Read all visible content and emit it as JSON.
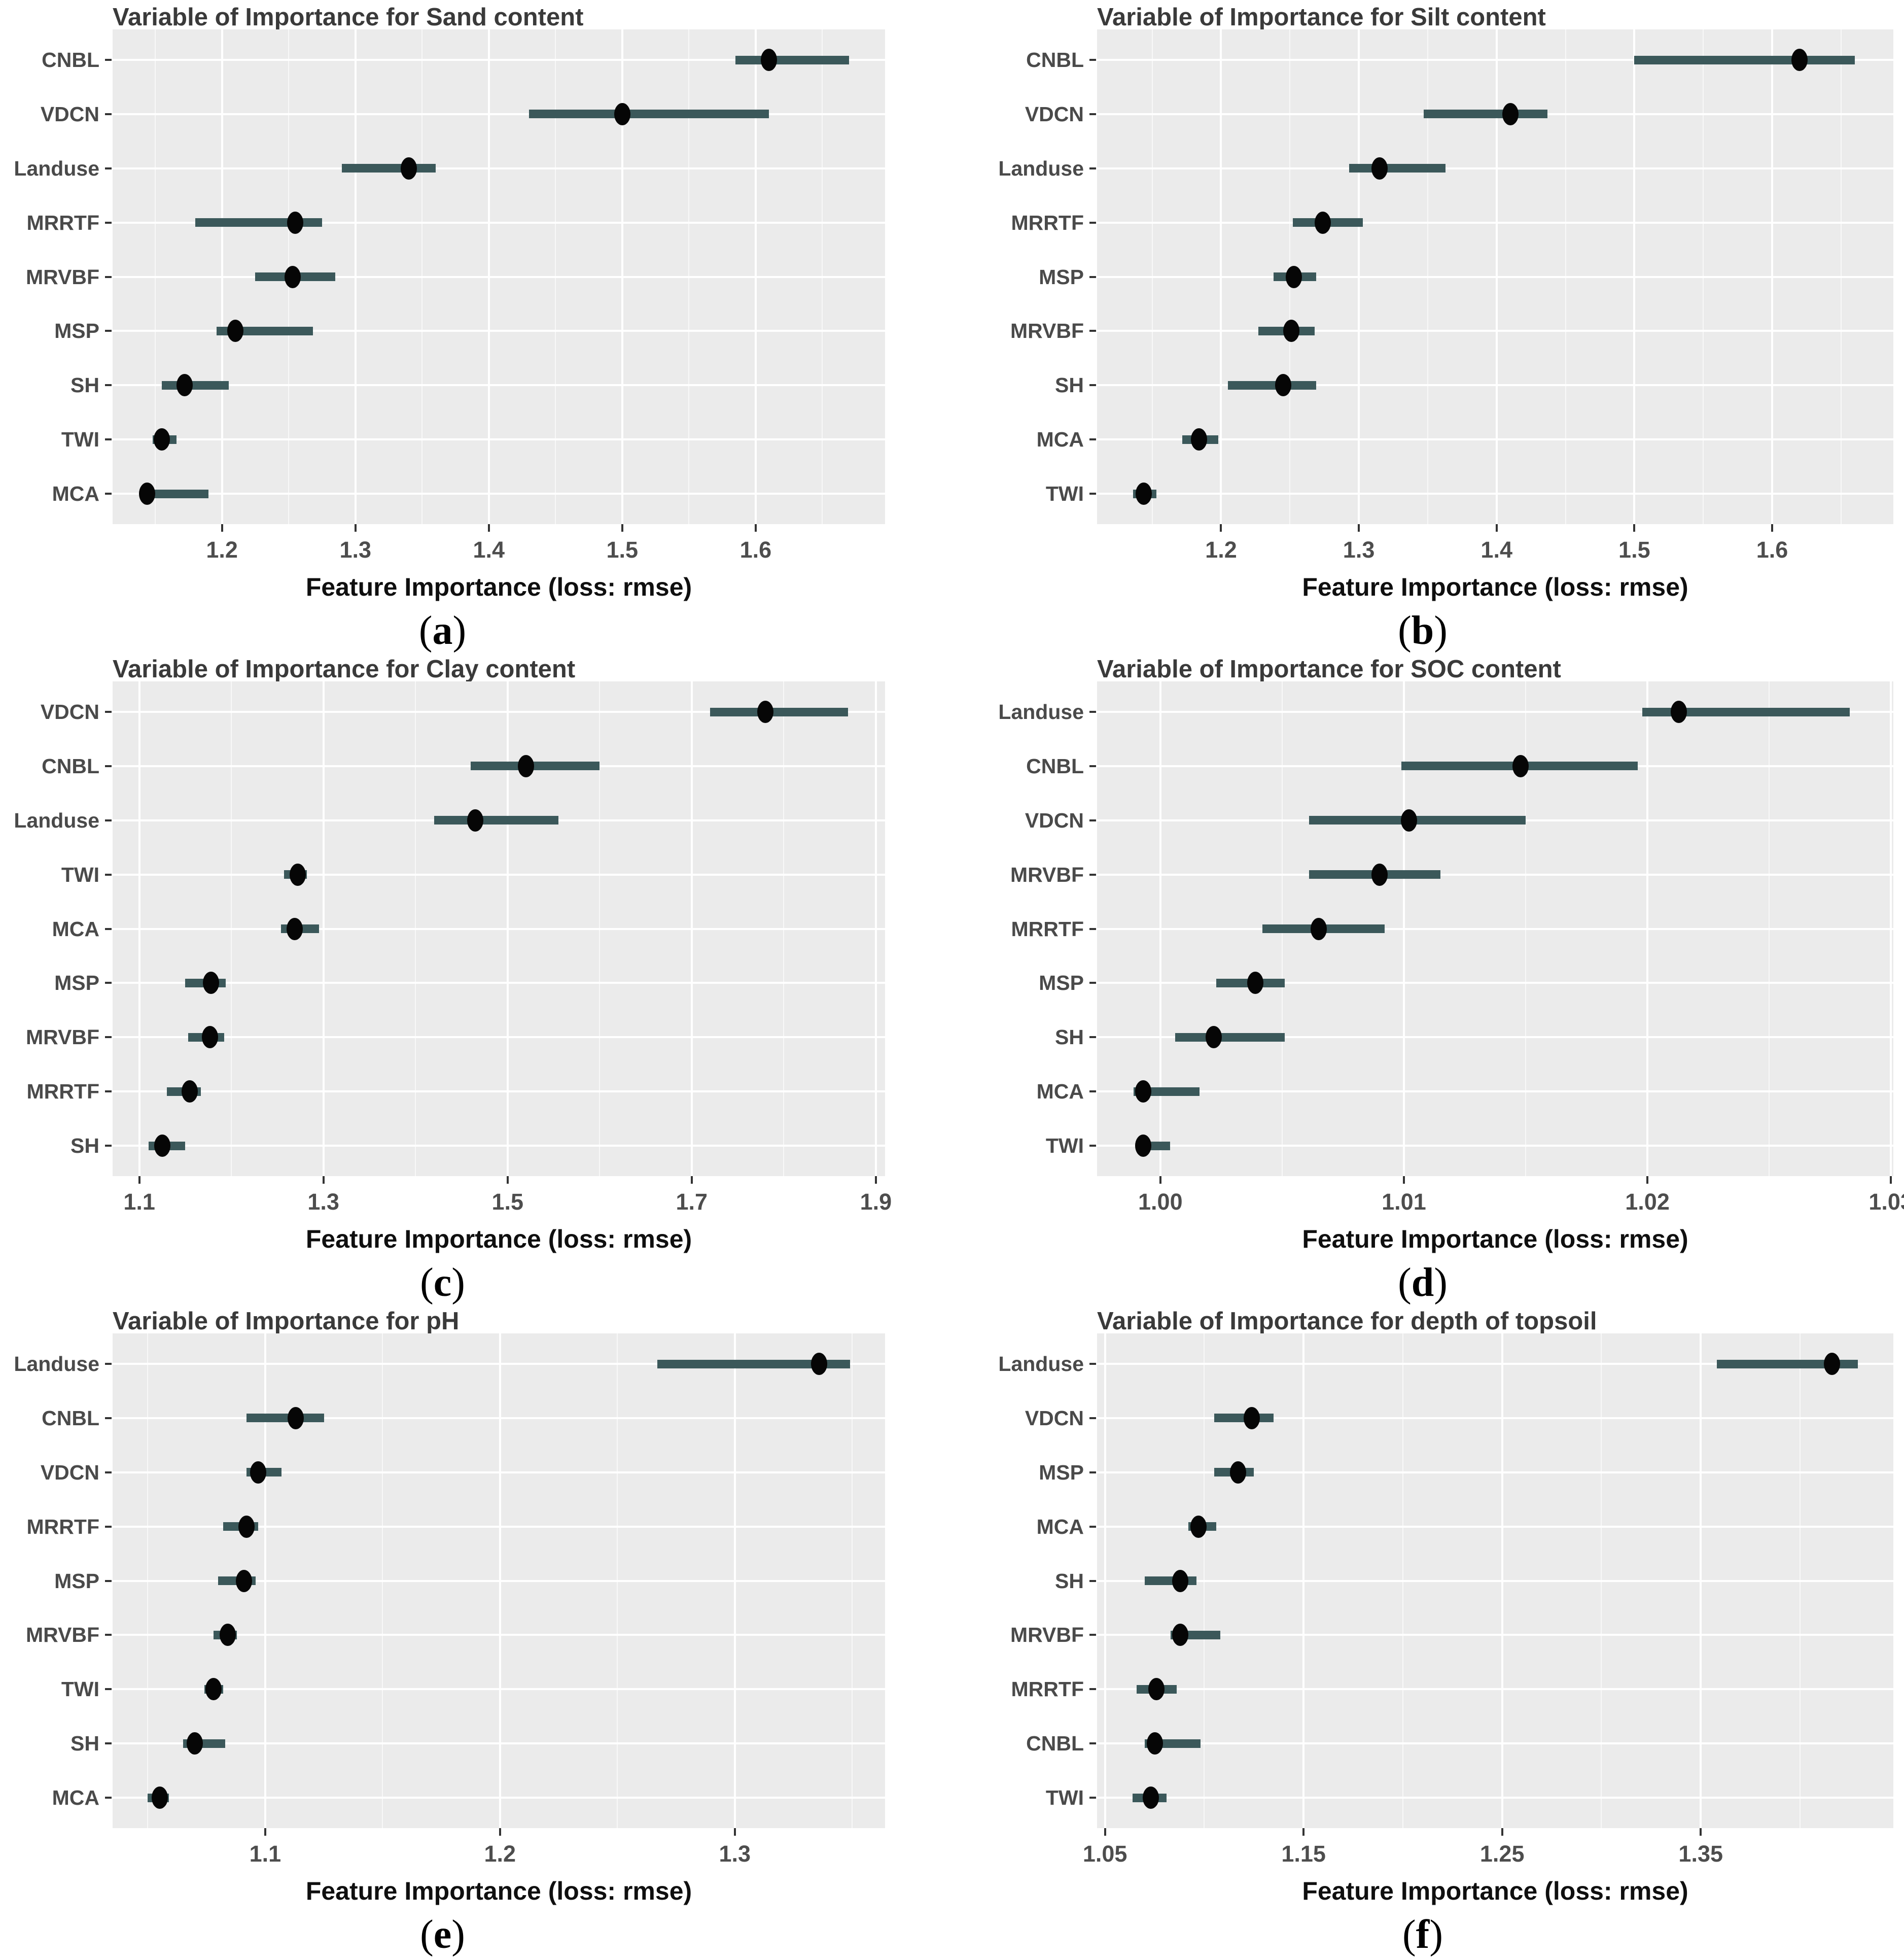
{
  "theme": {
    "plot_background": "#ebebeb",
    "gridline_color": "#ffffff",
    "bar_color": "#3b585a",
    "point_color": "#060606",
    "axis_text_color": "#4d4d4d",
    "title_color": "#3a3a3a"
  },
  "chart_data": [
    {
      "type": "scatter",
      "panel": "a",
      "title": "Variable of Importance for Sand content",
      "xlabel": "Feature Importance (loss: rmse)",
      "caption": {
        "open": "(",
        "letter": "a",
        "close": ")"
      },
      "legend": "none",
      "grid": "major+minor",
      "categories": [
        "CNBL",
        "VDCN",
        "Landuse",
        "MRRTF",
        "MRVBF",
        "MSP",
        "SH",
        "TWI",
        "MCA"
      ],
      "means": [
        1.61,
        1.5,
        1.34,
        1.255,
        1.253,
        1.21,
        1.172,
        1.155,
        1.144
      ],
      "lower": [
        1.585,
        1.43,
        1.29,
        1.18,
        1.225,
        1.196,
        1.155,
        1.148,
        1.139
      ],
      "upper": [
        1.67,
        1.61,
        1.36,
        1.275,
        1.285,
        1.268,
        1.205,
        1.166,
        1.19
      ],
      "xlim": [
        1.118,
        1.697
      ],
      "xticks": [
        1.2,
        1.3,
        1.4,
        1.5,
        1.6
      ],
      "xtick_labels": [
        "1.2",
        "1.3",
        "1.4",
        "1.5",
        "1.6"
      ],
      "xminor": [
        1.15,
        1.25,
        1.35,
        1.45,
        1.55,
        1.65
      ]
    },
    {
      "type": "scatter",
      "panel": "b",
      "title": "Variable of Importance for Silt content",
      "xlabel": "Feature Importance (loss: rmse)",
      "caption": {
        "open": "(",
        "letter": "b",
        "close": ")"
      },
      "legend": "none",
      "grid": "major+minor",
      "categories": [
        "CNBL",
        "VDCN",
        "Landuse",
        "MRRTF",
        "MSP",
        "MRVBF",
        "SH",
        "MCA",
        "TWI"
      ],
      "means": [
        1.62,
        1.41,
        1.315,
        1.274,
        1.253,
        1.251,
        1.245,
        1.184,
        1.144
      ],
      "lower": [
        1.5,
        1.347,
        1.293,
        1.252,
        1.238,
        1.227,
        1.205,
        1.172,
        1.136
      ],
      "upper": [
        1.66,
        1.437,
        1.363,
        1.303,
        1.269,
        1.268,
        1.269,
        1.198,
        1.153
      ],
      "xlim": [
        1.11,
        1.688
      ],
      "xticks": [
        1.2,
        1.3,
        1.4,
        1.5,
        1.6
      ],
      "xtick_labels": [
        "1.2",
        "1.3",
        "1.4",
        "1.5",
        "1.6"
      ],
      "xminor": [
        1.15,
        1.25,
        1.35,
        1.45,
        1.55,
        1.65
      ]
    },
    {
      "type": "scatter",
      "panel": "c",
      "title": "Variable of Importance for Clay content",
      "xlabel": "Feature Importance (loss: rmse)",
      "caption": {
        "open": "(",
        "letter": "c",
        "close": ")"
      },
      "legend": "none",
      "grid": "major+minor",
      "categories": [
        "VDCN",
        "CNBL",
        "Landuse",
        "TWI",
        "MCA",
        "MSP",
        "MRVBF",
        "MRRTF",
        "SH"
      ],
      "means": [
        1.78,
        1.52,
        1.465,
        1.272,
        1.269,
        1.178,
        1.177,
        1.155,
        1.125
      ],
      "lower": [
        1.72,
        1.46,
        1.42,
        1.257,
        1.254,
        1.15,
        1.153,
        1.13,
        1.11
      ],
      "upper": [
        1.87,
        1.6,
        1.555,
        1.282,
        1.295,
        1.194,
        1.192,
        1.167,
        1.15
      ],
      "xlim": [
        1.071,
        1.91
      ],
      "xticks": [
        1.1,
        1.3,
        1.5,
        1.7,
        1.9
      ],
      "xtick_labels": [
        "1.1",
        "1.3",
        "1.5",
        "1.7",
        "1.9"
      ],
      "xminor": [
        1.2,
        1.4,
        1.6,
        1.8
      ]
    },
    {
      "type": "scatter",
      "panel": "d",
      "title": "Variable of Importance for SOC content",
      "xlabel": "Feature Importance (loss: rmse)",
      "caption": {
        "open": "(",
        "letter": "d",
        "close": ")"
      },
      "legend": "none",
      "grid": "major+minor",
      "categories": [
        "Landuse",
        "CNBL",
        "VDCN",
        "MRVBF",
        "MRRTF",
        "MSP",
        "SH",
        "MCA",
        "TWI"
      ],
      "means": [
        1.0213,
        1.0148,
        1.0102,
        1.009,
        1.0065,
        1.0039,
        1.0022,
        0.9993,
        0.9993
      ],
      "lower": [
        1.0198,
        1.0099,
        1.0061,
        1.0061,
        1.0042,
        1.0023,
        1.0006,
        0.9989,
        0.999
      ],
      "upper": [
        1.0283,
        1.0196,
        1.015,
        1.0115,
        1.0092,
        1.0051,
        1.0051,
        1.0016,
        1.0004
      ],
      "xlim": [
        0.9974,
        1.0301
      ],
      "xticks": [
        1.0,
        1.01,
        1.02,
        1.03
      ],
      "xtick_labels": [
        "1.00",
        "1.01",
        "1.02",
        "1.03"
      ],
      "xminor": [
        1.005,
        1.015,
        1.025
      ]
    },
    {
      "type": "scatter",
      "panel": "e",
      "title": "Variable of Importance for pH",
      "xlabel": "Feature Importance (loss: rmse)",
      "caption": {
        "open": "(",
        "letter": "e",
        "close": ")"
      },
      "legend": "none",
      "grid": "major+minor",
      "categories": [
        "Landuse",
        "CNBL",
        "VDCN",
        "MRRTF",
        "MSP",
        "MRVBF",
        "TWI",
        "SH",
        "MCA"
      ],
      "means": [
        1.336,
        1.113,
        1.097,
        1.092,
        1.091,
        1.084,
        1.078,
        1.07,
        1.055
      ],
      "lower": [
        1.267,
        1.092,
        1.092,
        1.082,
        1.08,
        1.078,
        1.074,
        1.065,
        1.05
      ],
      "upper": [
        1.349,
        1.125,
        1.107,
        1.097,
        1.096,
        1.088,
        1.082,
        1.083,
        1.059
      ],
      "xlim": [
        1.035,
        1.364
      ],
      "xticks": [
        1.1,
        1.2,
        1.3
      ],
      "xtick_labels": [
        "1.1",
        "1.2",
        "1.3"
      ],
      "xminor": [
        1.05,
        1.15,
        1.25,
        1.35
      ]
    },
    {
      "type": "scatter",
      "panel": "f",
      "title": "Variable of Importance for depth of topsoil",
      "xlabel": "Feature Importance (loss: rmse)",
      "caption": {
        "open": "(",
        "letter": "f",
        "close": ")"
      },
      "legend": "none",
      "grid": "major+minor",
      "categories": [
        "Landuse",
        "VDCN",
        "MSP",
        "MCA",
        "SH",
        "MRVBF",
        "MRRTF",
        "CNBL",
        "TWI"
      ],
      "means": [
        1.416,
        1.124,
        1.117,
        1.097,
        1.088,
        1.088,
        1.076,
        1.075,
        1.073
      ],
      "lower": [
        1.358,
        1.105,
        1.105,
        1.092,
        1.07,
        1.083,
        1.066,
        1.07,
        1.064
      ],
      "upper": [
        1.429,
        1.135,
        1.125,
        1.106,
        1.096,
        1.108,
        1.086,
        1.098,
        1.081
      ],
      "xlim": [
        1.046,
        1.447
      ],
      "xticks": [
        1.05,
        1.15,
        1.25,
        1.35
      ],
      "xtick_labels": [
        "1.05",
        "1.15",
        "1.25",
        "1.35"
      ],
      "xminor": [
        1.1,
        1.2,
        1.3,
        1.4
      ]
    }
  ]
}
